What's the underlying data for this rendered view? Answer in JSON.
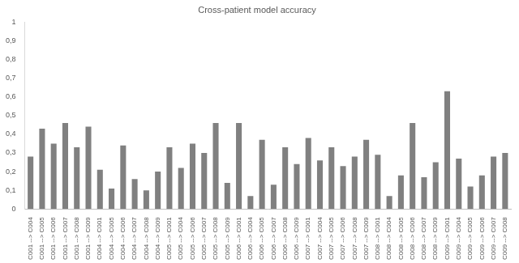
{
  "chart_data": {
    "type": "bar",
    "title": "Cross-patient model accuracy",
    "categories": [
      "C001 --> C004",
      "C001 --> C005",
      "C001 --> C006",
      "C001 --> C007",
      "C001 --> C008",
      "C001 --> C009",
      "C004 --> C001",
      "C004 --> C005",
      "C004 --> C006",
      "C004 --> C007",
      "C004 --> C008",
      "C004 --> C009",
      "C005 --> C001",
      "C005 --> C004",
      "C005 --> C006",
      "C005 --> C007",
      "C005 --> C008",
      "C005 --> C009",
      "C006 --> C001",
      "C006 --> C004",
      "C006 --> C005",
      "C006 --> C007",
      "C006 --> C008",
      "C006 --> C009",
      "C007 --> C001",
      "C007 --> C004",
      "C007 --> C005",
      "C007 --> C006",
      "C007 --> C008",
      "C007 --> C009",
      "C008 --> C001",
      "C008 --> C004",
      "C008 --> C005",
      "C008 --> C006",
      "C008 --> C007",
      "C008 --> C009",
      "C009 --> C001",
      "C009 --> C004",
      "C009 --> C005",
      "C009 --> C006",
      "C009 --> C007",
      "C009 --> C008"
    ],
    "values": [
      0.28,
      0.43,
      0.35,
      0.46,
      0.33,
      0.44,
      0.21,
      0.11,
      0.34,
      0.16,
      0.1,
      0.2,
      0.33,
      0.22,
      0.35,
      0.3,
      0.46,
      0.14,
      0.46,
      0.07,
      0.37,
      0.13,
      0.33,
      0.24,
      0.38,
      0.26,
      0.33,
      0.23,
      0.28,
      0.37,
      0.29,
      0.07,
      0.18,
      0.46,
      0.17,
      0.25,
      0.63,
      0.27,
      0.12,
      0.18,
      0.28,
      0.3
    ],
    "color": "#808080",
    "ylim": [
      0,
      1
    ],
    "yticks": [
      0,
      {
        "value": 0.1,
        "label": "0,1"
      },
      {
        "value": 0.2,
        "label": "0,2"
      },
      {
        "value": 0.3,
        "label": "0,3"
      },
      {
        "value": 0.4,
        "label": "0,4"
      },
      {
        "value": 0.5,
        "label": "0,5"
      },
      {
        "value": 0.6,
        "label": "0,6"
      },
      {
        "value": 0.7,
        "label": "0,7"
      },
      {
        "value": 0.8,
        "label": "0,8"
      },
      {
        "value": 0.9,
        "label": "0,9"
      },
      1
    ],
    "grid": false
  }
}
